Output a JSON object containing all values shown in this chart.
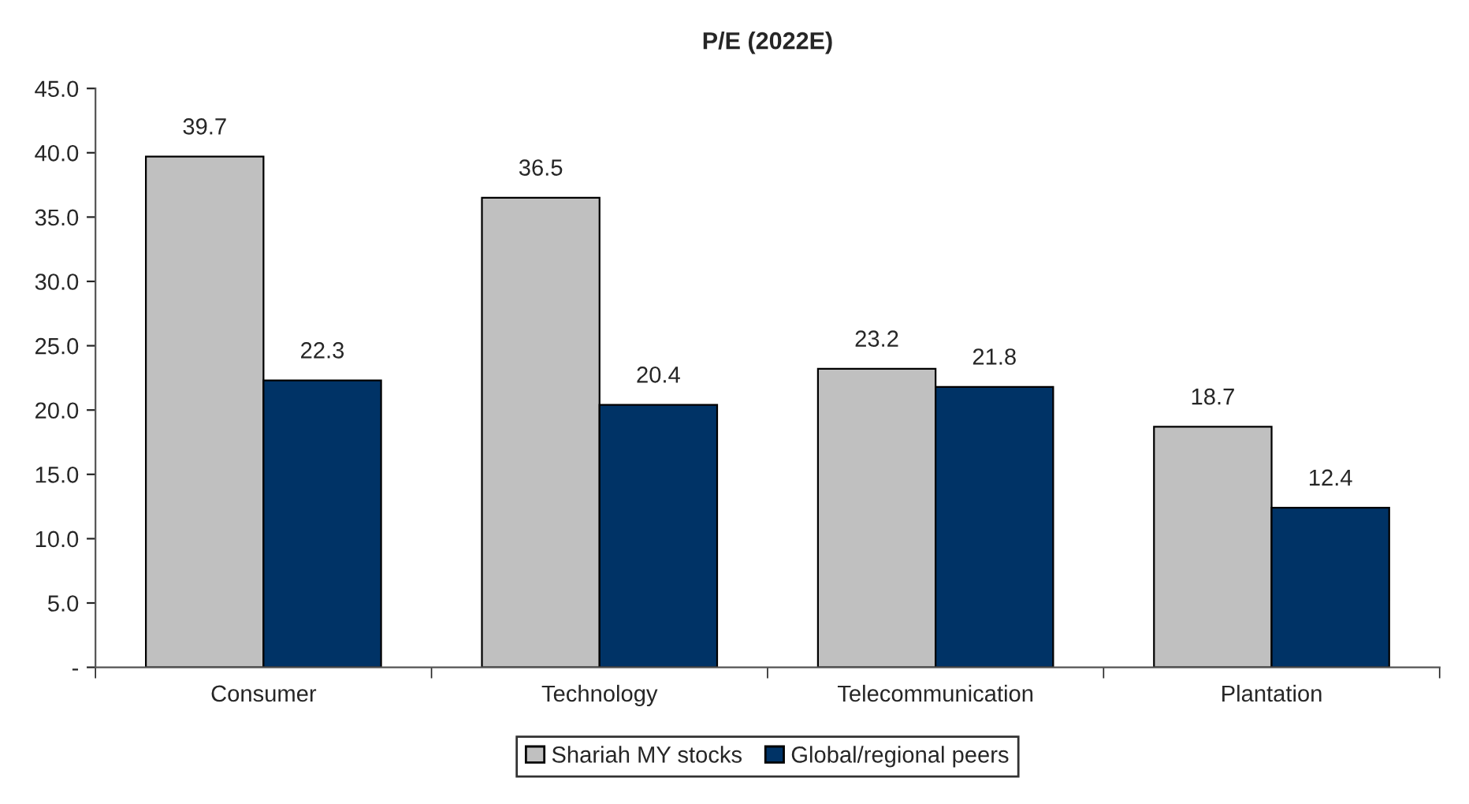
{
  "chart_data": {
    "type": "bar",
    "title": "P/E (2022E)",
    "categories": [
      "Consumer",
      "Technology",
      "Telecommunication",
      "Plantation"
    ],
    "series": [
      {
        "name": "Shariah MY stocks",
        "color": "#c0c0c0",
        "values": [
          39.7,
          36.5,
          23.2,
          18.7
        ]
      },
      {
        "name": "Global/regional peers",
        "color": "#003366",
        "values": [
          22.3,
          20.4,
          21.8,
          12.4
        ]
      }
    ],
    "ylim": [
      0,
      45
    ],
    "yticks": [
      {
        "value": 0,
        "label": "-"
      },
      {
        "value": 5,
        "label": "5.0"
      },
      {
        "value": 10,
        "label": "10.0"
      },
      {
        "value": 15,
        "label": "15.0"
      },
      {
        "value": 20,
        "label": "20.0"
      },
      {
        "value": 25,
        "label": "25.0"
      },
      {
        "value": 30,
        "label": "30.0"
      },
      {
        "value": 35,
        "label": "35.0"
      },
      {
        "value": 40,
        "label": "40.0"
      },
      {
        "value": 45,
        "label": "45.0"
      }
    ],
    "data_labels": true,
    "grid": false,
    "legend": "bottom"
  }
}
